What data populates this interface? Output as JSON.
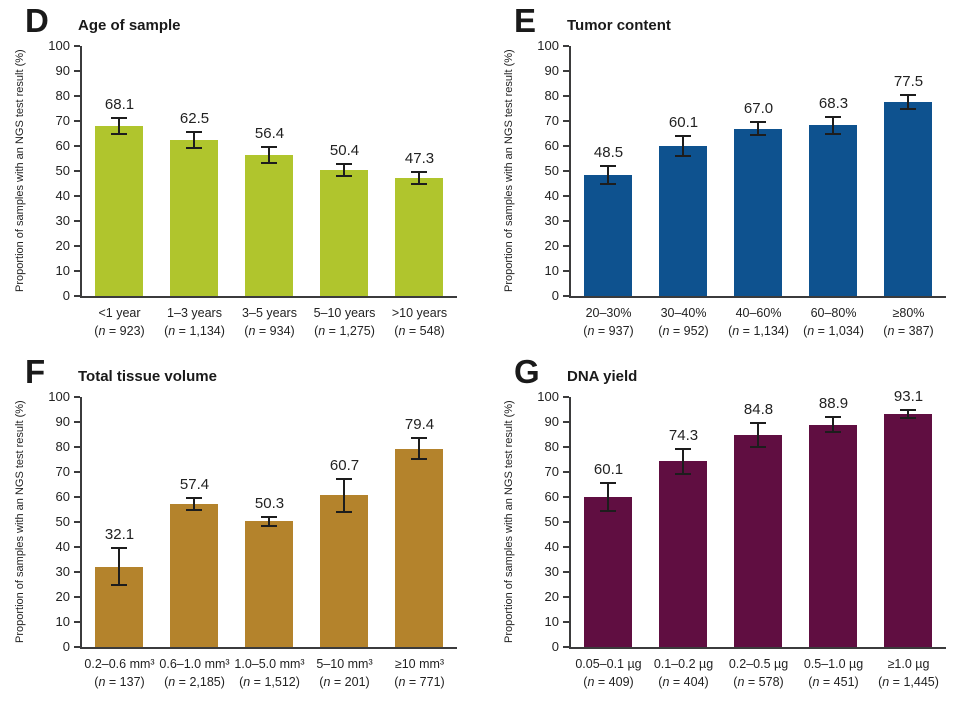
{
  "figure": {
    "ylabel": "Proportion of samples with an NGS test result (%)",
    "axis_color": "#3b3b3c",
    "error_bar_color": "#1d1d1d"
  },
  "chart_data": [
    {
      "type": "bar",
      "panel_letter": "D",
      "title": "Age of sample",
      "bar_color": "#b0c52d",
      "ylabel": "Proportion of samples with an NGS test result (%)",
      "ylim": [
        0,
        100
      ],
      "yticks": [
        0,
        10,
        20,
        30,
        40,
        50,
        60,
        70,
        80,
        90,
        100
      ],
      "grid": false,
      "categories": [
        "<1 year",
        "1–3 years",
        "3–5 years",
        "5–10 years",
        ">10 years"
      ],
      "n_labels": [
        "(n = 923)",
        "(n = 1,134)",
        "(n = 934)",
        "(n = 1,275)",
        "(n = 548)"
      ],
      "values": [
        68.1,
        62.5,
        56.4,
        50.4,
        47.3
      ],
      "value_labels": [
        "68.1",
        "62.5",
        "56.4",
        "50.4",
        "47.3"
      ],
      "errors": [
        3.2,
        3.3,
        3.2,
        2.5,
        2.3
      ]
    },
    {
      "type": "bar",
      "panel_letter": "E",
      "title": "Tumor content",
      "bar_color": "#0e528f",
      "ylabel": "Proportion of samples with an NGS test result (%)",
      "ylim": [
        0,
        100
      ],
      "yticks": [
        0,
        10,
        20,
        30,
        40,
        50,
        60,
        70,
        80,
        90,
        100
      ],
      "grid": false,
      "categories": [
        "20–30%",
        "30–40%",
        "40–60%",
        "60–80%",
        "≥80%"
      ],
      "n_labels": [
        "(n = 937)",
        "(n = 952)",
        "(n = 1,134)",
        "(n = 1,034)",
        "(n = 387)"
      ],
      "values": [
        48.5,
        60.1,
        67.0,
        68.3,
        77.5
      ],
      "value_labels": [
        "48.5",
        "60.1",
        "67.0",
        "68.3",
        "77.5"
      ],
      "errors": [
        3.5,
        4.0,
        2.5,
        3.5,
        2.8
      ]
    },
    {
      "type": "bar",
      "panel_letter": "F",
      "title": "Total tissue volume",
      "bar_color": "#b4832c",
      "ylabel": "Proportion of samples with an NGS test result (%)",
      "ylim": [
        0,
        100
      ],
      "yticks": [
        0,
        10,
        20,
        30,
        40,
        50,
        60,
        70,
        80,
        90,
        100
      ],
      "grid": false,
      "categories": [
        "0.2–0.6 mm³",
        "0.6–1.0 mm³",
        "1.0–5.0 mm³",
        "5–10 mm³",
        "≥10 mm³"
      ],
      "n_labels": [
        "(n = 137)",
        "(n = 2,185)",
        "(n = 1,512)",
        "(n = 201)",
        "(n = 771)"
      ],
      "values": [
        32.1,
        57.4,
        50.3,
        60.7,
        79.4
      ],
      "value_labels": [
        "32.1",
        "57.4",
        "50.3",
        "60.7",
        "79.4"
      ],
      "errors": [
        7.4,
        2.4,
        1.8,
        6.6,
        4.3
      ]
    },
    {
      "type": "bar",
      "panel_letter": "G",
      "title": "DNA yield",
      "bar_color": "#600e41",
      "ylabel": "Proportion of samples with an NGS test result (%)",
      "ylim": [
        0,
        100
      ],
      "yticks": [
        0,
        10,
        20,
        30,
        40,
        50,
        60,
        70,
        80,
        90,
        100
      ],
      "grid": false,
      "categories": [
        "0.05–0.1 µg",
        "0.1–0.2 µg",
        "0.2–0.5 µg",
        "0.5–1.0 µg",
        "≥1.0 µg"
      ],
      "n_labels": [
        "(n = 409)",
        "(n = 404)",
        "(n = 578)",
        "(n = 451)",
        "(n = 1,445)"
      ],
      "values": [
        60.1,
        74.3,
        84.8,
        88.9,
        93.1
      ],
      "value_labels": [
        "60.1",
        "74.3",
        "84.8",
        "88.9",
        "93.1"
      ],
      "errors": [
        5.5,
        4.9,
        4.7,
        3.0,
        1.6
      ]
    }
  ]
}
